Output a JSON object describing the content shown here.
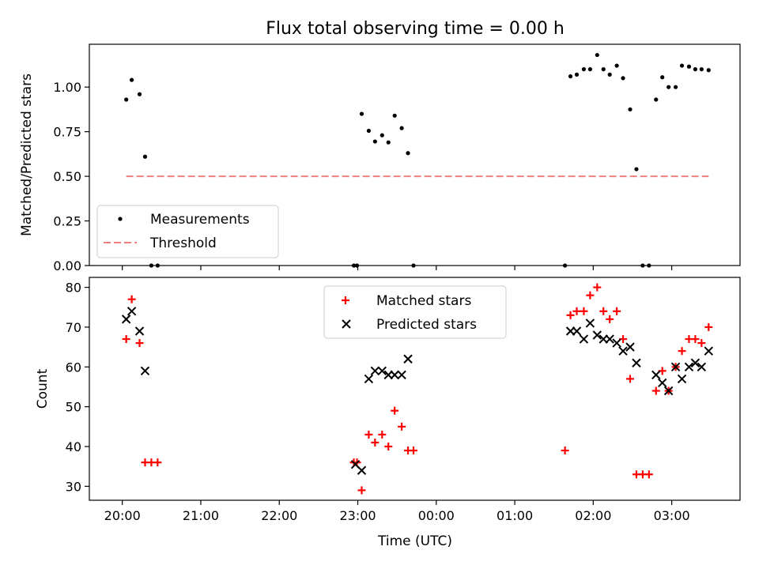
{
  "chart_data": [
    {
      "type": "scatter",
      "title": "Flux total observing time = 0.00 h",
      "ylabel": "Matched/Predicted stars",
      "xlabel": "",
      "ylim": [
        0,
        1.24
      ],
      "xlim_hours": [
        19.58,
        27.87
      ],
      "yticks": [
        "0.00",
        "0.25",
        "0.50",
        "0.75",
        "1.00"
      ],
      "legend_position": "lower-left",
      "grid": false,
      "series": [
        {
          "name": "Measurements",
          "marker": "dot",
          "color": "#000000",
          "points": [
            [
              20.05,
              0.93
            ],
            [
              20.12,
              1.04
            ],
            [
              20.22,
              0.96
            ],
            [
              20.29,
              0.61
            ],
            [
              20.37,
              0.0
            ],
            [
              20.45,
              0.0
            ],
            [
              22.95,
              0.0
            ],
            [
              22.99,
              0.0
            ],
            [
              23.05,
              0.85
            ],
            [
              23.14,
              0.755
            ],
            [
              23.22,
              0.695
            ],
            [
              23.31,
              0.73
            ],
            [
              23.39,
              0.69
            ],
            [
              23.47,
              0.84
            ],
            [
              23.56,
              0.77
            ],
            [
              23.64,
              0.63
            ],
            [
              23.71,
              0.0
            ],
            [
              25.64,
              0.0
            ],
            [
              25.71,
              1.06
            ],
            [
              25.79,
              1.07
            ],
            [
              25.88,
              1.1
            ],
            [
              25.96,
              1.1
            ],
            [
              26.05,
              1.18
            ],
            [
              26.13,
              1.1
            ],
            [
              26.21,
              1.07
            ],
            [
              26.3,
              1.12
            ],
            [
              26.38,
              1.05
            ],
            [
              26.47,
              0.875
            ],
            [
              26.55,
              0.54
            ],
            [
              26.63,
              0.0
            ],
            [
              26.71,
              0.0
            ],
            [
              26.8,
              0.93
            ],
            [
              26.88,
              1.055
            ],
            [
              26.96,
              1.0
            ],
            [
              27.05,
              1.0
            ],
            [
              27.13,
              1.12
            ],
            [
              27.22,
              1.115
            ],
            [
              27.3,
              1.1
            ],
            [
              27.38,
              1.1
            ],
            [
              27.47,
              1.095
            ]
          ]
        },
        {
          "name": "Threshold",
          "marker": "dashed-line",
          "color": "#f08080",
          "points": [
            [
              20.05,
              0.5
            ],
            [
              27.47,
              0.5
            ]
          ]
        }
      ]
    },
    {
      "type": "scatter",
      "title": "",
      "ylabel": "Count",
      "xlabel": "Time (UTC)",
      "ylim": [
        26.5,
        82.5
      ],
      "xlim_hours": [
        19.58,
        27.87
      ],
      "yticks": [
        "30",
        "40",
        "50",
        "60",
        "70",
        "80"
      ],
      "xticks": [
        "20:00",
        "21:00",
        "22:00",
        "23:00",
        "00:00",
        "01:00",
        "02:00",
        "03:00"
      ],
      "xtick_hours": [
        20,
        21,
        22,
        23,
        24,
        25,
        26,
        27
      ],
      "legend_position": "upper-center",
      "grid": false,
      "series": [
        {
          "name": "Matched stars",
          "marker": "plus",
          "color": "#ff0000",
          "points": [
            [
              20.05,
              67
            ],
            [
              20.12,
              77
            ],
            [
              20.22,
              66
            ],
            [
              20.29,
              36
            ],
            [
              20.37,
              36
            ],
            [
              20.45,
              36
            ],
            [
              22.95,
              36
            ],
            [
              22.99,
              36
            ],
            [
              23.05,
              29
            ],
            [
              23.14,
              43
            ],
            [
              23.22,
              41
            ],
            [
              23.31,
              43
            ],
            [
              23.39,
              40
            ],
            [
              23.47,
              49
            ],
            [
              23.56,
              45
            ],
            [
              23.64,
              39
            ],
            [
              23.71,
              39
            ],
            [
              25.64,
              39
            ],
            [
              25.71,
              73
            ],
            [
              25.79,
              74
            ],
            [
              25.88,
              74
            ],
            [
              25.96,
              78
            ],
            [
              26.05,
              80
            ],
            [
              26.13,
              74
            ],
            [
              26.21,
              72
            ],
            [
              26.3,
              74
            ],
            [
              26.38,
              67
            ],
            [
              26.47,
              57
            ],
            [
              26.55,
              33
            ],
            [
              26.63,
              33
            ],
            [
              26.71,
              33
            ],
            [
              26.8,
              54
            ],
            [
              26.88,
              59
            ],
            [
              26.96,
              54
            ],
            [
              27.05,
              60
            ],
            [
              27.13,
              64
            ],
            [
              27.22,
              67
            ],
            [
              27.3,
              67
            ],
            [
              27.38,
              66
            ],
            [
              27.47,
              70
            ]
          ]
        },
        {
          "name": "Predicted stars",
          "marker": "x",
          "color": "#000000",
          "points": [
            [
              20.05,
              72
            ],
            [
              20.12,
              74
            ],
            [
              20.22,
              69
            ],
            [
              20.29,
              59
            ],
            [
              22.97,
              35.5
            ],
            [
              23.05,
              34
            ],
            [
              23.14,
              57
            ],
            [
              23.22,
              59
            ],
            [
              23.31,
              59
            ],
            [
              23.39,
              58
            ],
            [
              23.47,
              58
            ],
            [
              23.56,
              58
            ],
            [
              23.64,
              62
            ],
            [
              25.71,
              69
            ],
            [
              25.79,
              69
            ],
            [
              25.88,
              67
            ],
            [
              25.96,
              71
            ],
            [
              26.05,
              68
            ],
            [
              26.13,
              67
            ],
            [
              26.21,
              67
            ],
            [
              26.3,
              66
            ],
            [
              26.38,
              64
            ],
            [
              26.47,
              65
            ],
            [
              26.55,
              61
            ],
            [
              26.8,
              58
            ],
            [
              26.88,
              56
            ],
            [
              26.96,
              54
            ],
            [
              27.05,
              60
            ],
            [
              27.13,
              57
            ],
            [
              27.22,
              60
            ],
            [
              27.3,
              61
            ],
            [
              27.38,
              60
            ],
            [
              27.47,
              64
            ]
          ]
        }
      ]
    }
  ]
}
